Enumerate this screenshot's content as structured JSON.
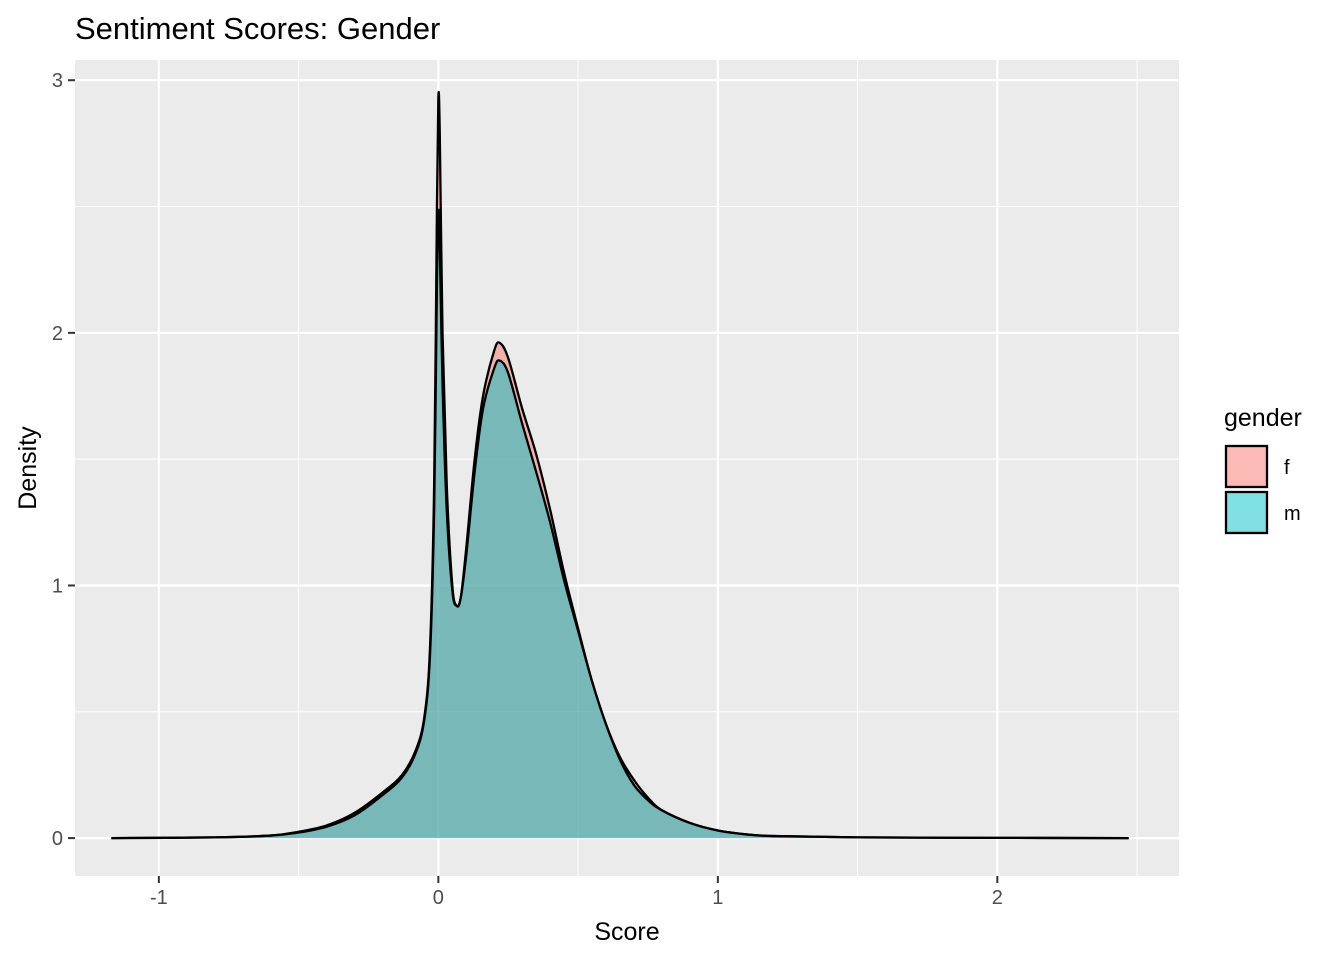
{
  "chart_data": {
    "type": "area",
    "title": "Sentiment Scores: Gender",
    "xlabel": "Score",
    "ylabel": "Density",
    "xlim": [
      -1.3,
      2.65
    ],
    "ylim": [
      -0.15,
      3.08
    ],
    "x_ticks": [
      -1,
      0,
      1,
      2
    ],
    "y_ticks": [
      0,
      1,
      2,
      3
    ],
    "grid": true,
    "legend": {
      "title": "gender",
      "position": "right"
    },
    "series": [
      {
        "name": "f",
        "color": "#F8766D",
        "points": [
          [
            -1.17,
            0
          ],
          [
            -0.8,
            0.003
          ],
          [
            -0.6,
            0.01
          ],
          [
            -0.5,
            0.025
          ],
          [
            -0.4,
            0.05
          ],
          [
            -0.3,
            0.1
          ],
          [
            -0.2,
            0.18
          ],
          [
            -0.13,
            0.25
          ],
          [
            -0.08,
            0.35
          ],
          [
            -0.05,
            0.48
          ],
          [
            -0.03,
            0.75
          ],
          [
            -0.015,
            1.4
          ],
          [
            -0.005,
            2.5
          ],
          [
            0,
            2.93
          ],
          [
            0.005,
            2.8
          ],
          [
            0.015,
            2.0
          ],
          [
            0.03,
            1.4
          ],
          [
            0.05,
            1.0
          ],
          [
            0.065,
            0.92
          ],
          [
            0.08,
            0.95
          ],
          [
            0.1,
            1.15
          ],
          [
            0.13,
            1.5
          ],
          [
            0.16,
            1.75
          ],
          [
            0.2,
            1.93
          ],
          [
            0.22,
            1.96
          ],
          [
            0.25,
            1.9
          ],
          [
            0.3,
            1.7
          ],
          [
            0.35,
            1.52
          ],
          [
            0.4,
            1.3
          ],
          [
            0.45,
            1.05
          ],
          [
            0.5,
            0.83
          ],
          [
            0.55,
            0.62
          ],
          [
            0.6,
            0.45
          ],
          [
            0.65,
            0.32
          ],
          [
            0.7,
            0.23
          ],
          [
            0.75,
            0.16
          ],
          [
            0.8,
            0.11
          ],
          [
            0.9,
            0.06
          ],
          [
            1.0,
            0.03
          ],
          [
            1.1,
            0.015
          ],
          [
            1.2,
            0.008
          ],
          [
            1.5,
            0.003
          ],
          [
            2.0,
            0.001
          ],
          [
            2.47,
            0
          ]
        ]
      },
      {
        "name": "m",
        "color": "#00BFC4",
        "points": [
          [
            -1.17,
            0
          ],
          [
            -0.8,
            0.003
          ],
          [
            -0.6,
            0.01
          ],
          [
            -0.5,
            0.022
          ],
          [
            -0.4,
            0.045
          ],
          [
            -0.3,
            0.09
          ],
          [
            -0.2,
            0.17
          ],
          [
            -0.13,
            0.24
          ],
          [
            -0.08,
            0.34
          ],
          [
            -0.05,
            0.47
          ],
          [
            -0.03,
            0.72
          ],
          [
            -0.015,
            1.3
          ],
          [
            -0.005,
            2.2
          ],
          [
            0,
            2.48
          ],
          [
            0.005,
            2.35
          ],
          [
            0.015,
            1.8
          ],
          [
            0.03,
            1.3
          ],
          [
            0.05,
            0.98
          ],
          [
            0.065,
            0.92
          ],
          [
            0.08,
            0.95
          ],
          [
            0.1,
            1.12
          ],
          [
            0.13,
            1.45
          ],
          [
            0.16,
            1.7
          ],
          [
            0.2,
            1.86
          ],
          [
            0.22,
            1.89
          ],
          [
            0.25,
            1.84
          ],
          [
            0.3,
            1.64
          ],
          [
            0.35,
            1.45
          ],
          [
            0.4,
            1.25
          ],
          [
            0.45,
            1.02
          ],
          [
            0.5,
            0.82
          ],
          [
            0.55,
            0.62
          ],
          [
            0.6,
            0.45
          ],
          [
            0.65,
            0.31
          ],
          [
            0.7,
            0.21
          ],
          [
            0.75,
            0.15
          ],
          [
            0.8,
            0.11
          ],
          [
            0.9,
            0.06
          ],
          [
            1.0,
            0.03
          ],
          [
            1.1,
            0.015
          ],
          [
            1.2,
            0.008
          ],
          [
            1.5,
            0.003
          ],
          [
            2.0,
            0.001
          ],
          [
            2.47,
            0
          ]
        ]
      }
    ]
  }
}
